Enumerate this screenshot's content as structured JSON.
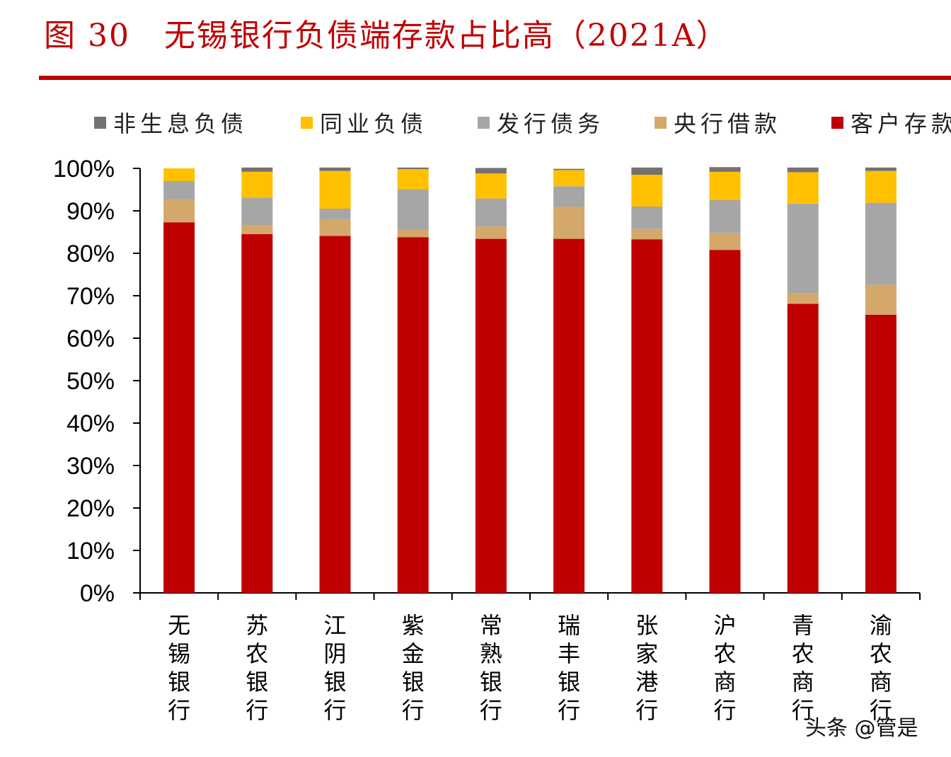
{
  "title": "图 30   无锡银行负债端存款占比高（2021A）",
  "watermark": "头条 @管是",
  "chart_data": {
    "type": "bar",
    "stacked": true,
    "title": "",
    "xlabel": "",
    "ylabel": "",
    "ylim": [
      0,
      100
    ],
    "yticks": [
      "0%",
      "10%",
      "20%",
      "30%",
      "40%",
      "50%",
      "60%",
      "70%",
      "80%",
      "90%",
      "100%"
    ],
    "legend_position": "top",
    "grid": false,
    "categories": [
      "无锡银行",
      "苏农银行",
      "江阴银行",
      "紫金银行",
      "常熟银行",
      "瑞丰银行",
      "张家港行",
      "沪农商行",
      "青农商行",
      "渝农商行"
    ],
    "series": [
      {
        "name": "客户存款",
        "color": "#c00000",
        "values": [
          87.3,
          84.5,
          84.1,
          83.8,
          83.4,
          83.4,
          83.3,
          80.8,
          68.1,
          65.5
        ]
      },
      {
        "name": "央行借款",
        "color": "#d4a86a",
        "values": [
          5.3,
          2.1,
          3.8,
          1.7,
          2.9,
          7.6,
          2.4,
          3.9,
          2.5,
          7.1
        ]
      },
      {
        "name": "发行债务",
        "color": "#a6a6a6",
        "values": [
          4.4,
          6.5,
          2.6,
          9.6,
          6.6,
          4.8,
          5.3,
          7.8,
          21.1,
          19.3
        ]
      },
      {
        "name": "同业负债",
        "color": "#ffc000",
        "values": [
          3.0,
          6.1,
          8.9,
          4.7,
          5.9,
          3.8,
          7.5,
          6.7,
          7.4,
          7.5
        ]
      },
      {
        "name": "非生息负债",
        "color": "#767171",
        "values": [
          0.0,
          1.0,
          0.8,
          0.4,
          1.3,
          0.3,
          1.7,
          1.1,
          1.1,
          0.8
        ]
      }
    ],
    "legend_order": [
      "非生息负债",
      "同业负债",
      "发行债务",
      "央行借款",
      "客户存款"
    ]
  }
}
